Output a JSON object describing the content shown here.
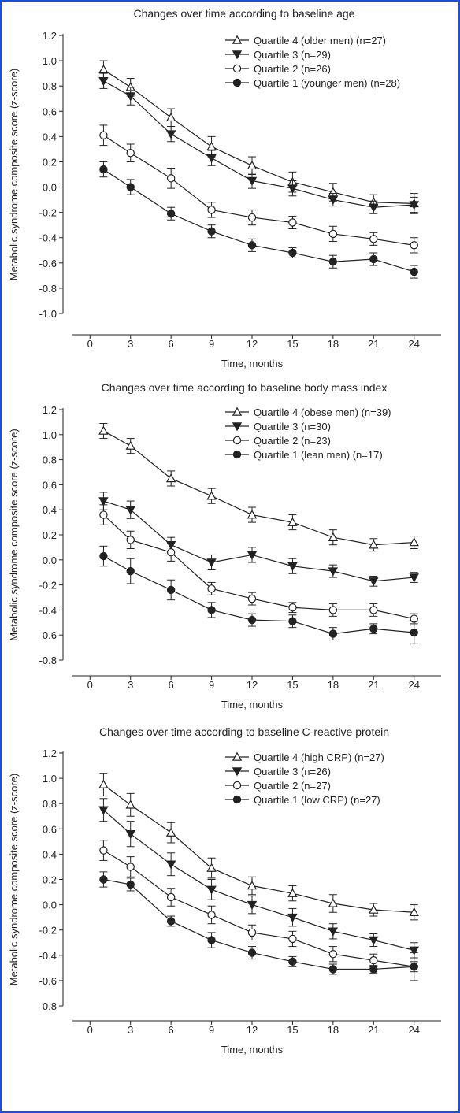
{
  "colors": {
    "border": "#1a4fd6",
    "ink": "#222222"
  },
  "chart_data": [
    {
      "type": "line",
      "title": "Changes over time according to baseline age",
      "xlabel": "Time, months",
      "ylabel": "Metabolic syndrome composite score (z-score)",
      "xlim": [
        -2,
        26
      ],
      "ylim": [
        -1.0,
        1.2
      ],
      "xticks": [
        "0",
        "3",
        "6",
        "9",
        "12",
        "15",
        "18",
        "21",
        "24"
      ],
      "yticks": [
        "1.2",
        "1.0",
        "0.8",
        "0.6",
        "0.4",
        "0.2",
        "0.0",
        "-0.2",
        "-0.4",
        "-0.6",
        "-0.8",
        "-1.0"
      ],
      "legend_position": "top-right",
      "x": [
        1,
        3,
        6,
        9,
        12,
        15,
        18,
        21,
        24
      ],
      "series": [
        {
          "name": "Quartile 4 (older men) (n=27)",
          "marker": "open-triangle",
          "values": [
            0.93,
            0.79,
            0.55,
            0.32,
            0.17,
            0.04,
            -0.04,
            -0.12,
            -0.13
          ],
          "error": [
            0.07,
            0.07,
            0.07,
            0.08,
            0.07,
            0.08,
            0.07,
            0.06,
            0.08
          ]
        },
        {
          "name": "Quartile 3 (n=29)",
          "marker": "filled-triangle-down",
          "values": [
            0.84,
            0.72,
            0.42,
            0.23,
            0.05,
            -0.01,
            -0.1,
            -0.16,
            -0.14
          ],
          "error": [
            0.06,
            0.07,
            0.06,
            0.06,
            0.06,
            0.06,
            0.05,
            0.05,
            0.06
          ]
        },
        {
          "name": "Quartile 2 (n=26)",
          "marker": "open-circle",
          "values": [
            0.41,
            0.27,
            0.07,
            -0.18,
            -0.24,
            -0.28,
            -0.37,
            -0.41,
            -0.46
          ],
          "error": [
            0.08,
            0.07,
            0.08,
            0.06,
            0.06,
            0.05,
            0.06,
            0.05,
            0.06
          ]
        },
        {
          "name": "Quartile 1 (younger men) (n=28)",
          "marker": "filled-circle",
          "values": [
            0.14,
            0.0,
            -0.21,
            -0.35,
            -0.46,
            -0.52,
            -0.59,
            -0.57,
            -0.67
          ],
          "error": [
            0.06,
            0.06,
            0.05,
            0.05,
            0.05,
            0.04,
            0.05,
            0.05,
            0.05
          ]
        }
      ]
    },
    {
      "type": "line",
      "title": "Changes over time according to baseline body mass index",
      "xlabel": "Time, months",
      "ylabel": "Metabolic syndrome composite score (z-score)",
      "xlim": [
        -2,
        26
      ],
      "ylim": [
        -0.8,
        1.2
      ],
      "xticks": [
        "0",
        "3",
        "6",
        "9",
        "12",
        "15",
        "18",
        "21",
        "24"
      ],
      "yticks": [
        "1.2",
        "1.0",
        "0.8",
        "0.6",
        "0.4",
        "0.2",
        "0.0",
        "-0.2",
        "-0.4",
        "-0.6",
        "-0.8"
      ],
      "legend_position": "top-right",
      "x": [
        1,
        3,
        6,
        9,
        12,
        15,
        18,
        21,
        24
      ],
      "series": [
        {
          "name": "Quartile 4 (obese men) (n=39)",
          "marker": "open-triangle",
          "values": [
            1.03,
            0.91,
            0.65,
            0.51,
            0.36,
            0.3,
            0.18,
            0.12,
            0.14
          ],
          "error": [
            0.06,
            0.06,
            0.06,
            0.06,
            0.06,
            0.06,
            0.06,
            0.05,
            0.05
          ]
        },
        {
          "name": "Quartile 3 (n=30)",
          "marker": "filled-triangle-down",
          "values": [
            0.47,
            0.4,
            0.12,
            -0.02,
            0.04,
            -0.05,
            -0.09,
            -0.17,
            -0.14
          ],
          "error": [
            0.07,
            0.07,
            0.06,
            0.06,
            0.06,
            0.06,
            0.05,
            0.04,
            0.04
          ]
        },
        {
          "name": "Quartile 2 (n=23)",
          "marker": "open-circle",
          "values": [
            0.36,
            0.16,
            0.06,
            -0.23,
            -0.31,
            -0.38,
            -0.4,
            -0.4,
            -0.47
          ],
          "error": [
            0.08,
            0.07,
            0.07,
            0.05,
            0.05,
            0.04,
            0.05,
            0.05,
            0.04
          ]
        },
        {
          "name": "Quartile 1 (lean men) (n=17)",
          "marker": "filled-circle",
          "values": [
            0.03,
            -0.09,
            -0.24,
            -0.4,
            -0.48,
            -0.49,
            -0.59,
            -0.55,
            -0.58
          ],
          "error": [
            0.08,
            0.1,
            0.08,
            0.06,
            0.05,
            0.05,
            0.05,
            0.04,
            0.09
          ]
        }
      ]
    },
    {
      "type": "line",
      "title": "Changes over time according to baseline C-reactive protein",
      "xlabel": "Time, months",
      "ylabel": "Metabolic syndrome composite score (z-score)",
      "xlim": [
        -2,
        26
      ],
      "ylim": [
        -0.8,
        1.2
      ],
      "xticks": [
        "0",
        "3",
        "6",
        "9",
        "12",
        "15",
        "18",
        "21",
        "24"
      ],
      "yticks": [
        "1.2",
        "1.0",
        "0.8",
        "0.6",
        "0.4",
        "0.2",
        "0.0",
        "-0.2",
        "-0.4",
        "-0.6",
        "-0.8"
      ],
      "legend_position": "top-right",
      "x": [
        1,
        3,
        6,
        9,
        12,
        15,
        18,
        21,
        24
      ],
      "series": [
        {
          "name": "Quartile 4 (high CRP) (n=27)",
          "marker": "open-triangle",
          "values": [
            0.95,
            0.79,
            0.57,
            0.29,
            0.15,
            0.09,
            0.01,
            -0.04,
            -0.06
          ],
          "error": [
            0.09,
            0.09,
            0.08,
            0.08,
            0.07,
            0.06,
            0.07,
            0.05,
            0.06
          ]
        },
        {
          "name": "Quartile 3 (n=26)",
          "marker": "filled-triangle-down",
          "values": [
            0.75,
            0.56,
            0.32,
            0.12,
            0.0,
            -0.1,
            -0.21,
            -0.28,
            -0.36
          ],
          "error": [
            0.09,
            0.1,
            0.09,
            0.08,
            0.07,
            0.07,
            0.06,
            0.05,
            0.06
          ]
        },
        {
          "name": "Quartile 2 (n=27)",
          "marker": "open-circle",
          "values": [
            0.43,
            0.3,
            0.06,
            -0.08,
            -0.22,
            -0.27,
            -0.39,
            -0.44,
            -0.49
          ],
          "error": [
            0.08,
            0.08,
            0.07,
            0.07,
            0.06,
            0.06,
            0.06,
            0.05,
            0.11
          ]
        },
        {
          "name": "Quartile 1 (low CRP) (n=27)",
          "marker": "filled-circle",
          "values": [
            0.2,
            0.16,
            -0.13,
            -0.28,
            -0.38,
            -0.45,
            -0.51,
            -0.51,
            -0.49
          ],
          "error": [
            0.06,
            0.05,
            0.04,
            0.06,
            0.05,
            0.04,
            0.04,
            0.03,
            0.04
          ]
        }
      ]
    }
  ]
}
